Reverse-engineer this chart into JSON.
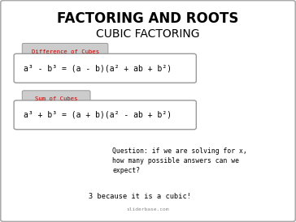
{
  "title1": "FACTORING AND ROOTS",
  "title2": "CUBIC FACTORING",
  "label1": "Difference of Cubes",
  "formula1": "a³ - b³ = (a - b)(a² + ab + b²)",
  "label2": "Sum of Cubes",
  "formula2": "a³ + b³ = (a + b)(a² - ab + b²)",
  "question": "Question: if we are solving for x,\nhow many possible answers can we\nexpect?",
  "answer": "3 because it is a cubic!",
  "watermark": "sliderbase.com",
  "bg_color": "#ffffff",
  "border_color": "#999999",
  "title_color": "#000000",
  "label_color": "#cc0000",
  "label_bg": "#cccccc",
  "formula_color": "#000000",
  "body_color": "#000000",
  "watermark_color": "#888888"
}
